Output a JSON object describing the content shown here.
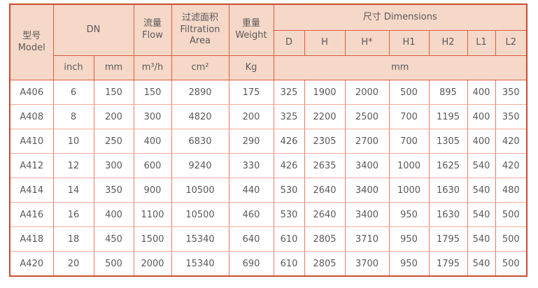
{
  "colors": {
    "header_background": "#f6d8c8",
    "border_strong": "#de5c3c",
    "border_outer": "#cf4a30",
    "border_data_vertical": "#e87a62",
    "border_data_horizontal": "#f2ab99",
    "text": "#58595b"
  },
  "table": {
    "header": {
      "model_zh": "型号",
      "model_en": "Model",
      "dn": "DN",
      "flow_zh": "流量",
      "flow_en": "Flow",
      "filtration_zh": "过滤面积",
      "filtration_en_line1": "Filtration",
      "filtration_en_line2": "Area",
      "weight_zh": "重量",
      "weight_en": "Weight",
      "dimensions": "尺寸 Dimensions",
      "dim_cols": [
        "D",
        "H",
        "H*",
        "H1",
        "H2",
        "L1",
        "L2"
      ],
      "units": {
        "dn_inch": "inch",
        "dn_mm": "mm",
        "flow": "m³/h",
        "area": "cm²",
        "weight": "Kg",
        "dims": "mm"
      }
    },
    "rows": [
      {
        "model": "A406",
        "inch": "6",
        "mm": "150",
        "flow": "150",
        "area": "2890",
        "weight": "175",
        "dims": [
          "325",
          "1900",
          "2000",
          "500",
          "895",
          "400",
          "350"
        ]
      },
      {
        "model": "A408",
        "inch": "8",
        "mm": "200",
        "flow": "300",
        "area": "4820",
        "weight": "200",
        "dims": [
          "325",
          "2200",
          "2500",
          "700",
          "1195",
          "400",
          "350"
        ]
      },
      {
        "model": "A410",
        "inch": "10",
        "mm": "250",
        "flow": "400",
        "area": "6830",
        "weight": "290",
        "dims": [
          "426",
          "2305",
          "2700",
          "700",
          "1305",
          "400",
          "420"
        ]
      },
      {
        "model": "A412",
        "inch": "12",
        "mm": "300",
        "flow": "600",
        "area": "9240",
        "weight": "330",
        "dims": [
          "426",
          "2635",
          "3400",
          "1000",
          "1625",
          "540",
          "420"
        ]
      },
      {
        "model": "A414",
        "inch": "14",
        "mm": "350",
        "flow": "900",
        "area": "10500",
        "weight": "440",
        "dims": [
          "530",
          "2640",
          "3400",
          "1000",
          "1630",
          "540",
          "480"
        ]
      },
      {
        "model": "A416",
        "inch": "16",
        "mm": "400",
        "flow": "1100",
        "area": "10500",
        "weight": "460",
        "dims": [
          "530",
          "2640",
          "3400",
          "950",
          "1630",
          "540",
          "500"
        ]
      },
      {
        "model": "A418",
        "inch": "18",
        "mm": "450",
        "flow": "1500",
        "area": "15340",
        "weight": "640",
        "dims": [
          "610",
          "2805",
          "3710",
          "950",
          "1795",
          "540",
          "500"
        ]
      },
      {
        "model": "A420",
        "inch": "20",
        "mm": "500",
        "flow": "2000",
        "area": "15340",
        "weight": "690",
        "dims": [
          "610",
          "2805",
          "3700",
          "950",
          "1795",
          "540",
          "500"
        ]
      }
    ]
  }
}
